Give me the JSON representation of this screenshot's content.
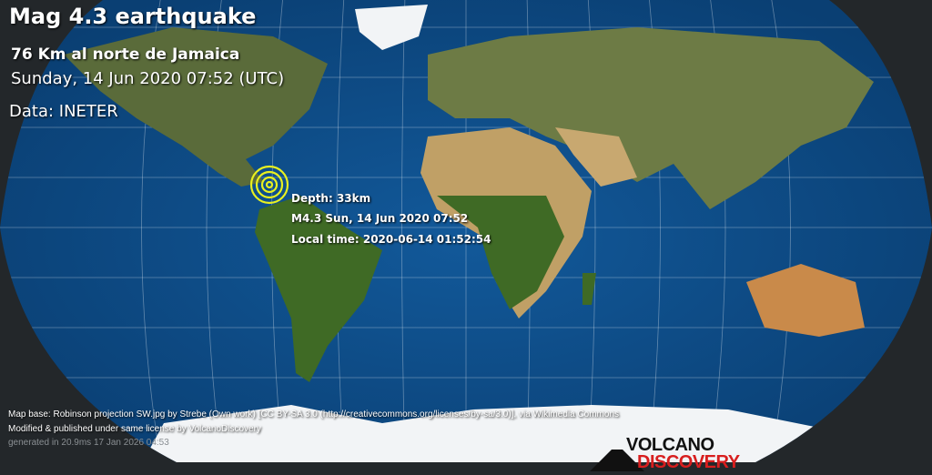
{
  "header": {
    "title": "Mag 4.3 earthquake",
    "location": "76 Km al norte de Jamaica",
    "datetime": "Sunday, 14 Jun 2020 07:52 (UTC)",
    "source": "Data: INETER"
  },
  "epicenter": {
    "depth": "Depth: 33km",
    "summary": "M4.3 Sun, 14 Jun 2020 07:52",
    "local_time": "Local time: 2020-06-14 01:52:54",
    "marker_color": "#e8f020"
  },
  "footer": {
    "credit_line1": "Map base: Robinson projection SW.jpg by Strebe (Own work) [CC BY-SA 3.0 (http://creativecommons.org/licenses/by-sa/3.0)], via Wikimedia Commons",
    "credit_line2": "Modified & published under same license by VolcanoDiscovery",
    "generated": "generated in 20.9ms 17 Jan 2026 04:53"
  },
  "logo": {
    "line1": "VOLCANO",
    "line2": "DISCOVERY"
  },
  "colors": {
    "ocean": "#0d4f8a",
    "land": "#4d6b2a",
    "desert": "#b89a62",
    "ice": "#f2f4f6",
    "background": "#23272a"
  }
}
